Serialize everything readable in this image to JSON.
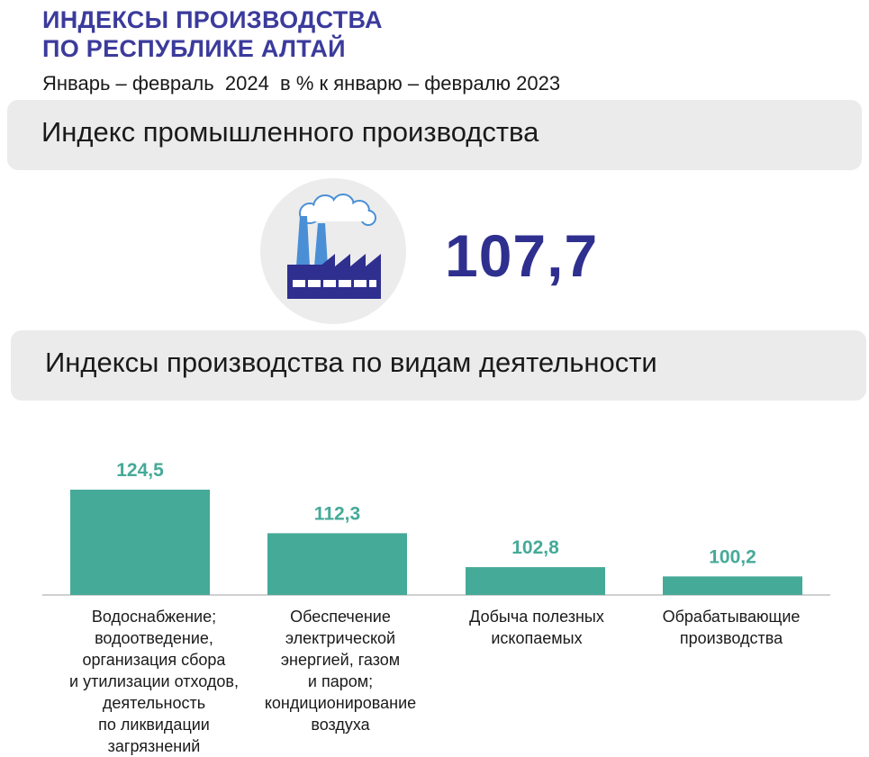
{
  "header": {
    "title_line1": "ИНДЕКСЫ ПРОИЗВОДСТВА",
    "title_line2": "ПО РЕСПУБЛИКЕ АЛТАЙ",
    "subtitle": "Январь – февраль  2024  в % к январю – февралю 2023"
  },
  "industrial_index": {
    "heading": "Индекс промышленного производства",
    "value": "107,7",
    "icon": "factory-icon"
  },
  "activity_section": {
    "heading": "Индексы производства по видам деятельности"
  },
  "colors": {
    "title": "#3b3b9c",
    "value": "#2f2f8f",
    "bar": "#45aa98",
    "bar_label": "#45aa98",
    "banner": "#ebebeb",
    "factory": "#2f2f8f",
    "smoke": "#4a8fd6"
  },
  "chart_data": {
    "type": "bar",
    "categories": [
      "Водоснабжение;\nводоотведение,\nорганизация сбора\nи утилизации отходов,\nдеятельность\nпо ликвидации\nзагрязнений",
      "Обеспечение\nэлектрической\nэнергией, газом\nи паром;\nкондиционирование\nвоздуха",
      "Добыча полезных\nископаемых",
      "Обрабатывающие\nпроизводства"
    ],
    "values": [
      124.5,
      112.3,
      102.8,
      100.2
    ],
    "value_labels": [
      "124,5",
      "112,3",
      "102,8",
      "100,2"
    ],
    "title": "",
    "xlabel": "",
    "ylabel": "",
    "grid": false,
    "legend": "none"
  }
}
